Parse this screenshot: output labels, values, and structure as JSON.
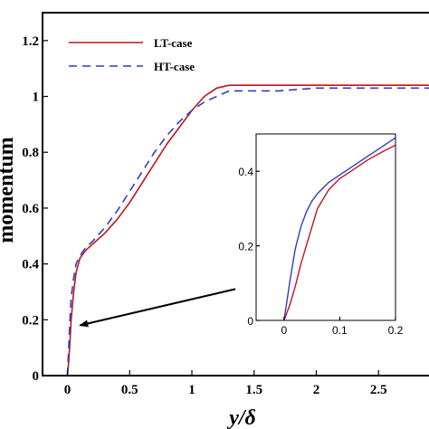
{
  "chart_data": [
    {
      "type": "line",
      "title": "",
      "xlabel": "y/δ",
      "ylabel": "momentum",
      "xlim": [
        -0.2,
        3.0
      ],
      "ylim": [
        0,
        1.3
      ],
      "xticks": [
        0,
        0.5,
        1,
        1.5,
        2,
        2.5
      ],
      "xtick_labels": [
        "0",
        "0.5",
        "1",
        "1.5",
        "2",
        "2.5"
      ],
      "yticks": [
        0,
        0.2,
        0.4,
        0.6,
        0.8,
        1.0,
        1.2
      ],
      "ytick_labels": [
        "0",
        "0.2",
        "0.4",
        "0.6",
        "0.8",
        "1",
        "1.2"
      ],
      "grid": false,
      "legend_position": "top-left",
      "series": [
        {
          "name": "LT-case",
          "color": "#c0141e",
          "dash": "solid",
          "x": [
            0,
            0.01,
            0.02,
            0.03,
            0.05,
            0.07,
            0.1,
            0.15,
            0.2,
            0.3,
            0.4,
            0.5,
            0.6,
            0.7,
            0.8,
            0.9,
            1.0,
            1.1,
            1.2,
            1.3,
            1.5,
            2.0,
            2.5,
            3.0
          ],
          "y": [
            0,
            0.05,
            0.12,
            0.2,
            0.3,
            0.37,
            0.42,
            0.45,
            0.47,
            0.51,
            0.56,
            0.62,
            0.69,
            0.76,
            0.83,
            0.89,
            0.95,
            1.0,
            1.03,
            1.04,
            1.04,
            1.04,
            1.04,
            1.04
          ]
        },
        {
          "name": "HT-case",
          "color": "#2d3fc4",
          "dash": "dashed",
          "x": [
            0,
            0.01,
            0.02,
            0.03,
            0.05,
            0.07,
            0.1,
            0.15,
            0.2,
            0.3,
            0.4,
            0.5,
            0.6,
            0.7,
            0.8,
            0.9,
            1.0,
            1.1,
            1.2,
            1.3,
            1.5,
            1.7,
            2.0,
            2.5,
            3.0
          ],
          "y": [
            0,
            0.1,
            0.2,
            0.28,
            0.35,
            0.4,
            0.43,
            0.46,
            0.48,
            0.53,
            0.59,
            0.66,
            0.73,
            0.8,
            0.86,
            0.91,
            0.95,
            0.98,
            1.0,
            1.02,
            1.02,
            1.02,
            1.03,
            1.03,
            1.03
          ]
        }
      ],
      "annotation": {
        "type": "arrow",
        "from": [
          1.35,
          0.31
        ],
        "to": [
          0.1,
          0.18
        ]
      }
    },
    {
      "type": "line",
      "title": "",
      "xlabel": "",
      "ylabel": "",
      "xlim": [
        -0.05,
        0.2
      ],
      "ylim": [
        0,
        0.5
      ],
      "xticks": [
        0,
        0.1,
        0.2
      ],
      "xtick_labels": [
        "0",
        "0.1",
        "0.2"
      ],
      "yticks": [
        0,
        0.2,
        0.4
      ],
      "ytick_labels": [
        "0",
        "0.2",
        "0.4"
      ],
      "grid": false,
      "series": [
        {
          "name": "LT-case",
          "color": "#c0141e",
          "dash": "solid",
          "x": [
            0,
            0.005,
            0.01,
            0.02,
            0.03,
            0.04,
            0.05,
            0.06,
            0.08,
            0.1,
            0.12,
            0.15,
            0.18,
            0.2
          ],
          "y": [
            0,
            0.02,
            0.04,
            0.09,
            0.15,
            0.2,
            0.25,
            0.3,
            0.35,
            0.38,
            0.4,
            0.43,
            0.455,
            0.47
          ]
        },
        {
          "name": "HT-case",
          "color": "#2d3fc4",
          "dash": "solid",
          "x": [
            0,
            0.005,
            0.01,
            0.02,
            0.03,
            0.04,
            0.05,
            0.06,
            0.08,
            0.1,
            0.12,
            0.15,
            0.18,
            0.2
          ],
          "y": [
            0,
            0.05,
            0.1,
            0.19,
            0.25,
            0.29,
            0.32,
            0.34,
            0.37,
            0.39,
            0.41,
            0.44,
            0.47,
            0.49
          ]
        }
      ]
    }
  ]
}
